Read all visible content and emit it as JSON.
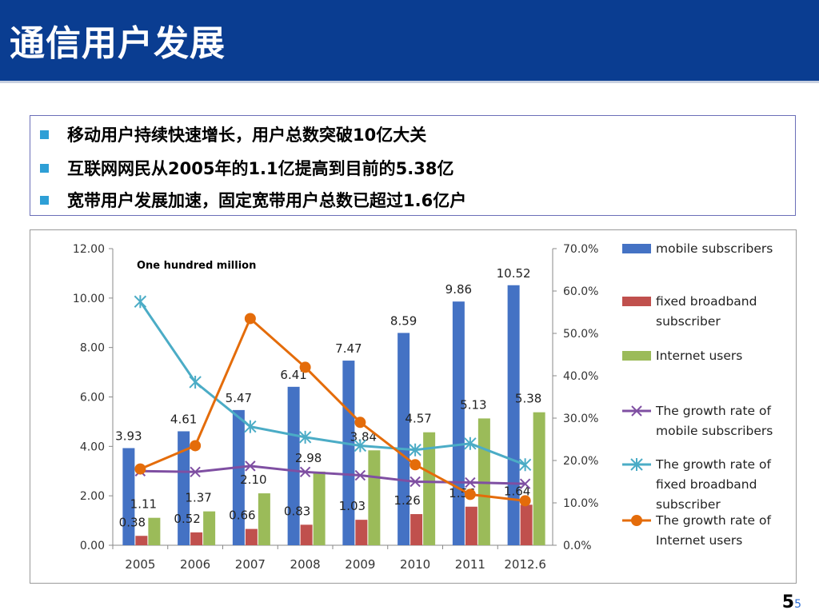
{
  "header": {
    "title": "通信用户发展"
  },
  "bullets": [
    "移动用户持续快速增长，用户总数突破10亿大关",
    "互联网网民从2005年的1.1亿提高到目前的5.38亿",
    "宽带用户发展加速，固定宽带用户总数已超过1.6亿户"
  ],
  "page_number": {
    "main": "5",
    "small": "5"
  },
  "colors": {
    "header": "#0a3d91",
    "bullet": "#2e9fd6",
    "mobile": "#4472c4",
    "fixed": "#c0504d",
    "internet": "#9bbb59",
    "growth_mobile": "#7f4fa2",
    "growth_fixed": "#4bacc6",
    "growth_internet": "#e46c0a"
  },
  "chart_data": {
    "type": "bar",
    "unit_note": "One hundred million",
    "categories": [
      "2005",
      "2006",
      "2007",
      "2008",
      "2009",
      "2010",
      "2011",
      "2012.6"
    ],
    "left_axis": {
      "min": 0,
      "max": 12,
      "ticks": [
        "0.00",
        "2.00",
        "4.00",
        "6.00",
        "8.00",
        "10.00",
        "12.00"
      ]
    },
    "right_axis": {
      "min": 0,
      "max": 70,
      "ticks": [
        "0.0%",
        "10.0%",
        "20.0%",
        "30.0%",
        "40.0%",
        "50.0%",
        "60.0%",
        "70.0%"
      ]
    },
    "series": [
      {
        "name": "mobile subscribers",
        "type": "bar",
        "axis": "left",
        "values": [
          3.93,
          4.61,
          5.47,
          6.41,
          7.47,
          8.59,
          9.86,
          10.52
        ],
        "labels": [
          "3.93",
          "4.61",
          "5.47",
          "6.41",
          "7.47",
          "8.59",
          "9.86",
          "10.52"
        ]
      },
      {
        "name": "fixed broadband subscriber",
        "type": "bar",
        "axis": "left",
        "values": [
          0.38,
          0.52,
          0.66,
          0.83,
          1.03,
          1.26,
          1.56,
          1.64
        ],
        "labels": [
          "0.38",
          "0.52",
          "0.66",
          "0.83",
          "1.03",
          "1.26",
          "1.56",
          "1.64"
        ]
      },
      {
        "name": "Internet users",
        "type": "bar",
        "axis": "left",
        "values": [
          1.11,
          1.37,
          2.1,
          2.98,
          3.84,
          4.57,
          5.13,
          5.38
        ],
        "labels": [
          "1.11",
          "1.37",
          "2.10",
          "2.98",
          "3.84",
          "4.57",
          "5.13",
          "5.38"
        ]
      },
      {
        "name": "The growth rate of mobile subscribers",
        "type": "line",
        "axis": "right",
        "marker": "x",
        "values": [
          17.5,
          17.3,
          18.7,
          17.3,
          16.5,
          15.0,
          14.8,
          14.5
        ]
      },
      {
        "name": "The growth rate of fixed broadband subscriber",
        "type": "line",
        "axis": "right",
        "marker": "asterisk",
        "values": [
          57.5,
          38.5,
          28.0,
          25.5,
          23.5,
          22.5,
          24.0,
          19.0
        ]
      },
      {
        "name": "The growth rate of Internet users",
        "type": "line",
        "axis": "right",
        "marker": "circle",
        "values": [
          18.0,
          23.5,
          53.5,
          42.0,
          29.0,
          19.0,
          12.0,
          10.5
        ]
      }
    ],
    "legend": [
      {
        "lines": [
          "mobile subscribers"
        ]
      },
      {
        "lines": [
          "fixed broadband",
          "subscriber"
        ]
      },
      {
        "lines": [
          "Internet users"
        ]
      },
      {
        "lines": [
          "The growth rate of",
          "mobile subscribers"
        ]
      },
      {
        "lines": [
          "The growth rate of",
          "fixed  broadband",
          "subscriber"
        ]
      },
      {
        "lines": [
          "The growth rate of",
          "Internet users"
        ]
      }
    ],
    "legend_position": "right",
    "grid": false
  }
}
